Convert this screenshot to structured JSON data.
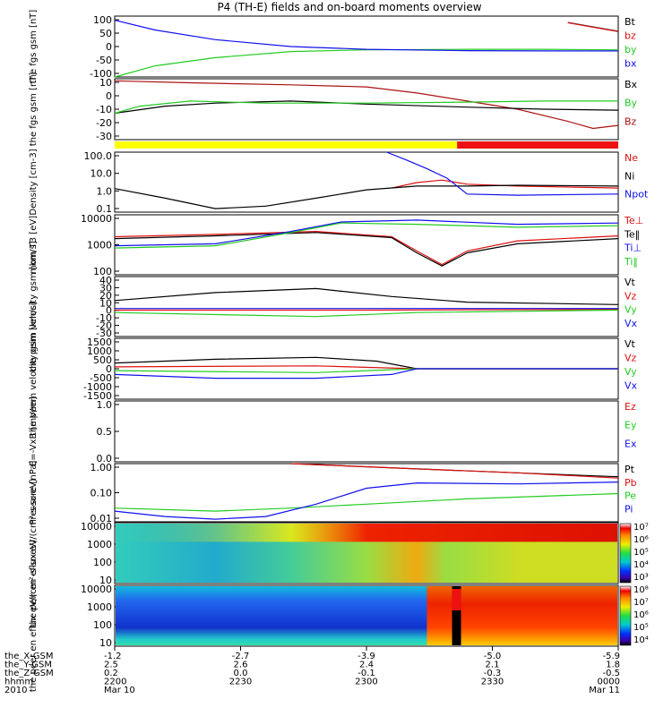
{
  "title": "P4 (TH-E) fields and on-board moments overview",
  "colors": {
    "black": "#000000",
    "red": "#dd1010",
    "green": "#22cc22",
    "blue": "#1010ee",
    "darkred": "#aa1010"
  },
  "bottom_axis": {
    "ticks": [
      "2200",
      "2230",
      "2300",
      "2330",
      "0000"
    ],
    "rows": [
      {
        "label": "the_X-GSM",
        "values": [
          "-1.2",
          "-2.7",
          "-3.9",
          "-5.0",
          "-5.9"
        ]
      },
      {
        "label": "the_Y-GSM",
        "values": [
          "2.5",
          "2.6",
          "2.4",
          "2.1",
          "1.8"
        ]
      },
      {
        "label": "the_Z-GSM",
        "values": [
          "0.2",
          "0.0",
          "-0.1",
          "-0.3",
          "-0.5"
        ]
      },
      {
        "label": "hhmm",
        "values": [
          "2200",
          "2230",
          "2300",
          "2330",
          "0000"
        ]
      }
    ],
    "year": "2010",
    "date_left": "Mar 10",
    "date_right": "Mar 11"
  },
  "chart_data": [
    {
      "type": "line",
      "panel": "fgs_gsm_top",
      "ylabel": "the fgs gsm [nT]",
      "yticks": [
        "100",
        "50",
        "0",
        "-50",
        "-100"
      ],
      "ylim": [
        -100,
        120
      ],
      "legend": [
        "Bt",
        "bz",
        "by",
        "bx"
      ],
      "x_range": [
        "2200",
        "0000"
      ],
      "series": [
        {
          "name": "Bt",
          "values": [
            [
              0,
              null
            ],
            [
              0.7,
              null
            ],
            [
              0.9,
              97
            ],
            [
              1.0,
              65
            ]
          ]
        },
        {
          "name": "bz",
          "values": [
            [
              0.7,
              null
            ],
            [
              0.9,
              96
            ],
            [
              1.0,
              64
            ]
          ]
        },
        {
          "name": "by",
          "values": [
            [
              0,
              -100
            ],
            [
              0.08,
              -60
            ],
            [
              0.2,
              -30
            ],
            [
              0.35,
              -8
            ],
            [
              0.5,
              -2
            ],
            [
              0.7,
              0
            ],
            [
              0.85,
              0
            ],
            [
              1.0,
              -2
            ]
          ]
        },
        {
          "name": "bx",
          "values": [
            [
              0,
              105
            ],
            [
              0.08,
              70
            ],
            [
              0.2,
              35
            ],
            [
              0.35,
              10
            ],
            [
              0.5,
              0
            ],
            [
              0.7,
              -5
            ],
            [
              0.85,
              -6
            ],
            [
              1.0,
              -6
            ]
          ]
        }
      ]
    },
    {
      "type": "line",
      "panel": "fgs_gsm_detail",
      "ylabel": "the fgs gsm [nT]",
      "yticks": [
        "10",
        "0",
        "-10",
        "-20",
        "-30"
      ],
      "ylim": [
        -38,
        22
      ],
      "legend": [
        "Bx",
        "By",
        "Bz"
      ],
      "series": [
        {
          "name": "Bz",
          "values": [
            [
              0,
              20
            ],
            [
              0.15,
              18
            ],
            [
              0.35,
              16
            ],
            [
              0.5,
              14
            ],
            [
              0.6,
              8
            ],
            [
              0.7,
              0
            ],
            [
              0.8,
              -8
            ],
            [
              0.9,
              -20
            ],
            [
              0.95,
              -27
            ],
            [
              1.0,
              -24
            ]
          ]
        },
        {
          "name": "Bx",
          "values": [
            [
              0,
              -12
            ],
            [
              0.1,
              -5
            ],
            [
              0.2,
              -2
            ],
            [
              0.35,
              0
            ],
            [
              0.5,
              -3
            ],
            [
              0.7,
              -6
            ],
            [
              0.85,
              -8
            ],
            [
              1.0,
              -9
            ]
          ]
        },
        {
          "name": "By",
          "values": [
            [
              0,
              -12
            ],
            [
              0.05,
              -5
            ],
            [
              0.15,
              0
            ],
            [
              0.3,
              -2
            ],
            [
              0.5,
              -2
            ],
            [
              0.7,
              -1
            ],
            [
              0.85,
              0
            ],
            [
              1.0,
              0
            ]
          ]
        }
      ]
    },
    {
      "type": "bar",
      "panel": "mode_bar",
      "segments": [
        {
          "from": 0,
          "to": 0.68,
          "color": "#ffff00"
        },
        {
          "from": 0.68,
          "to": 1,
          "color": "#ee1111"
        }
      ]
    },
    {
      "type": "line",
      "panel": "density",
      "scale": "log",
      "ylabel": "Density [cm-3]",
      "yticks": [
        "100.0",
        "10.0",
        "1.0",
        "0.1"
      ],
      "ylim": [
        0.1,
        100
      ],
      "legend": [
        "Ne",
        "Ni",
        "Npot"
      ],
      "series": [
        {
          "name": "Ne",
          "values": [
            [
              0.55,
              1.6
            ],
            [
              0.6,
              3
            ],
            [
              0.65,
              4
            ],
            [
              0.7,
              2.5
            ],
            [
              0.8,
              2
            ],
            [
              1.0,
              1.6
            ]
          ]
        },
        {
          "name": "Ni",
          "values": [
            [
              0,
              1.5
            ],
            [
              0.1,
              0.5
            ],
            [
              0.2,
              0.15
            ],
            [
              0.3,
              0.2
            ],
            [
              0.4,
              0.5
            ],
            [
              0.5,
              1.3
            ],
            [
              0.6,
              2
            ],
            [
              0.7,
              2
            ],
            [
              0.8,
              2.2
            ],
            [
              1.0,
              2
            ]
          ]
        },
        {
          "name": "Npot",
          "values": [
            [
              0.54,
              100
            ],
            [
              0.58,
              40
            ],
            [
              0.62,
              15
            ],
            [
              0.66,
              5
            ],
            [
              0.7,
              0.8
            ],
            [
              0.8,
              0.7
            ],
            [
              1.0,
              0.8
            ]
          ]
        }
      ]
    },
    {
      "type": "line",
      "panel": "temperature",
      "scale": "log",
      "ylabel": "mom T3 [eV]",
      "yticks": [
        "10000",
        "1000",
        "100"
      ],
      "ylim": [
        30,
        10000
      ],
      "legend": [
        "Te⊥",
        "Te‖",
        "Ti⊥",
        "Ti‖"
      ],
      "series": [
        {
          "name": "Te⊥",
          "values": [
            [
              0,
              1200
            ],
            [
              0.2,
              1500
            ],
            [
              0.4,
              2000
            ],
            [
              0.55,
              1200
            ],
            [
              0.6,
              300
            ],
            [
              0.65,
              80
            ],
            [
              0.7,
              300
            ],
            [
              0.8,
              800
            ],
            [
              1.0,
              1300
            ]
          ]
        },
        {
          "name": "Te‖",
          "values": [
            [
              0,
              1000
            ],
            [
              0.2,
              1300
            ],
            [
              0.4,
              1800
            ],
            [
              0.55,
              1100
            ],
            [
              0.6,
              250
            ],
            [
              0.65,
              70
            ],
            [
              0.7,
              250
            ],
            [
              0.8,
              600
            ],
            [
              1.0,
              1000
            ]
          ]
        },
        {
          "name": "Ti⊥",
          "values": [
            [
              0,
              500
            ],
            [
              0.2,
              600
            ],
            [
              0.35,
              2000
            ],
            [
              0.45,
              5000
            ],
            [
              0.6,
              6000
            ],
            [
              0.8,
              4000
            ],
            [
              1.0,
              4500
            ]
          ]
        },
        {
          "name": "Ti‖",
          "values": [
            [
              0,
              400
            ],
            [
              0.2,
              500
            ],
            [
              0.35,
              1800
            ],
            [
              0.45,
              4500
            ],
            [
              0.6,
              4000
            ],
            [
              0.8,
              3000
            ],
            [
              1.0,
              3500
            ]
          ]
        }
      ]
    },
    {
      "type": "line",
      "panel": "peim_velocity",
      "ylabel": "the peim velocity gsm [km/s]",
      "yticks": [
        "40",
        "30",
        "20",
        "10",
        "0",
        "-10",
        "-20",
        "-30"
      ],
      "ylim": [
        -35,
        40
      ],
      "legend": [
        "Vt",
        "Vz",
        "Vy",
        "Vx"
      ],
      "series": [
        {
          "name": "Vt",
          "values": [
            [
              0,
              10
            ],
            [
              0.2,
              20
            ],
            [
              0.4,
              25
            ],
            [
              0.55,
              15
            ],
            [
              0.7,
              8
            ],
            [
              1.0,
              5
            ]
          ]
        },
        {
          "name": "Vz",
          "values": [
            [
              0,
              -2
            ],
            [
              0.5,
              -2
            ],
            [
              1.0,
              -1
            ]
          ]
        },
        {
          "name": "Vy",
          "values": [
            [
              0,
              -5
            ],
            [
              0.4,
              -10
            ],
            [
              0.6,
              -5
            ],
            [
              1.0,
              -2
            ]
          ]
        },
        {
          "name": "Vx",
          "values": [
            [
              0,
              0
            ],
            [
              1.0,
              0
            ]
          ]
        }
      ]
    },
    {
      "type": "line",
      "panel": "peem_velocity",
      "ylabel": "the peem velocity gsm [km/s]",
      "yticks": [
        "1500",
        "1000",
        "500",
        "0",
        "-500",
        "-1000",
        "-1500"
      ],
      "ylim": [
        -1600,
        1600
      ],
      "legend": [
        "Vt",
        "Vz",
        "Vy",
        "Vx"
      ],
      "series": [
        {
          "name": "Vt",
          "values": [
            [
              0,
              300
            ],
            [
              0.2,
              500
            ],
            [
              0.4,
              600
            ],
            [
              0.52,
              400
            ],
            [
              0.6,
              0
            ],
            [
              1.0,
              0
            ]
          ]
        },
        {
          "name": "Vz",
          "values": [
            [
              0,
              100
            ],
            [
              0.4,
              150
            ],
            [
              0.6,
              0
            ],
            [
              1.0,
              0
            ]
          ]
        },
        {
          "name": "Vy",
          "values": [
            [
              0,
              -100
            ],
            [
              0.4,
              -200
            ],
            [
              0.6,
              0
            ],
            [
              1.0,
              0
            ]
          ]
        },
        {
          "name": "Vx",
          "values": [
            [
              0,
              -300
            ],
            [
              0.2,
              -500
            ],
            [
              0.4,
              -500
            ],
            [
              0.55,
              -300
            ],
            [
              0.6,
              0
            ],
            [
              1.0,
              0
            ]
          ]
        }
      ]
    },
    {
      "type": "line",
      "panel": "e_vxb",
      "ylabel": "E=-VxB [mV/m]",
      "yticks": [
        "1.0",
        "0.5",
        "0.0"
      ],
      "ylim": [
        0,
        1
      ],
      "legend": [
        "Ez",
        "Ey",
        "Ex"
      ],
      "series": []
    },
    {
      "type": "line",
      "panel": "pressure",
      "scale": "log",
      "ylabel": "Pressure [nPa]",
      "yticks": [
        "1.00",
        "0.10",
        "0.01"
      ],
      "ylim": [
        0.005,
        10
      ],
      "legend": [
        "Pt",
        "Pb",
        "Pe",
        "Pi"
      ],
      "series": [
        {
          "name": "Pt",
          "values": [
            [
              0.35,
              10
            ],
            [
              0.6,
              5
            ],
            [
              0.8,
              3
            ],
            [
              1.0,
              1.8
            ]
          ]
        },
        {
          "name": "Pb",
          "values": [
            [
              0.35,
              10
            ],
            [
              0.6,
              5
            ],
            [
              0.8,
              3
            ],
            [
              1.0,
              1.5
            ]
          ]
        },
        {
          "name": "Pe",
          "values": [
            [
              0,
              0.03
            ],
            [
              0.2,
              0.02
            ],
            [
              0.35,
              0.03
            ],
            [
              0.5,
              0.05
            ],
            [
              0.7,
              0.1
            ],
            [
              1.0,
              0.2
            ]
          ]
        },
        {
          "name": "Pi",
          "values": [
            [
              0,
              0.02
            ],
            [
              0.1,
              0.01
            ],
            [
              0.2,
              0.007
            ],
            [
              0.3,
              0.01
            ],
            [
              0.4,
              0.05
            ],
            [
              0.5,
              0.4
            ],
            [
              0.6,
              0.8
            ],
            [
              0.8,
              0.7
            ],
            [
              1.0,
              0.9
            ]
          ]
        }
      ]
    },
    {
      "type": "heatmap",
      "panel": "peir_eflux",
      "scale": "log",
      "ylabel": "the peir en eflux eV/(cm²-s-sr-eV)",
      "yticks": [
        "10000",
        "1000",
        "100",
        "10"
      ],
      "colorbar": [
        "10⁷",
        "10⁶",
        "10⁵",
        "10⁴",
        "10³"
      ]
    },
    {
      "type": "heatmap",
      "panel": "peer_eflux",
      "scale": "log",
      "ylabel": "the peer en eflux eV/(cm²-s-sr-eV)",
      "yticks": [
        "10000",
        "1000",
        "100",
        "10"
      ],
      "colorbar": [
        "10⁸",
        "10⁷",
        "10⁶",
        "10⁵",
        "10⁴"
      ]
    }
  ]
}
